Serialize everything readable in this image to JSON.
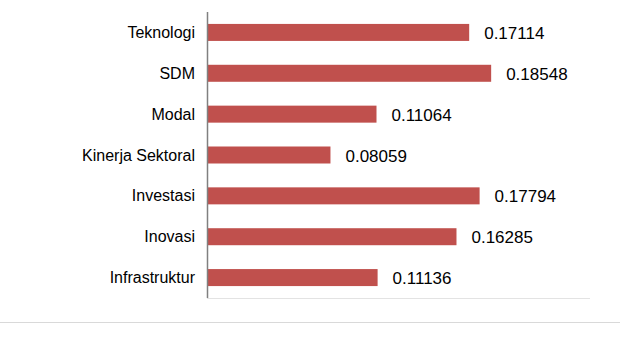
{
  "chart_data": {
    "type": "bar",
    "orientation": "horizontal",
    "categories": [
      "Teknologi",
      "SDM",
      "Modal",
      "Kinerja Sektoral",
      "Investasi",
      "Inovasi",
      "Infrastruktur"
    ],
    "values": [
      0.17114,
      0.18548,
      0.11064,
      0.08059,
      0.17794,
      0.16285,
      0.11136
    ],
    "color": "#c0504d",
    "xlim": [
      0,
      0.25
    ],
    "grid": false,
    "data_labels": true,
    "tick_labels": "y"
  }
}
